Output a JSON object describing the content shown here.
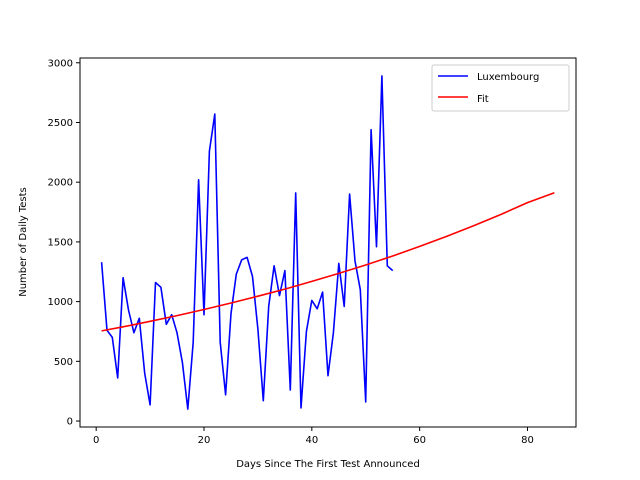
{
  "chart_data": {
    "type": "line",
    "title": "",
    "xlabel": "Days Since The First Test Announced",
    "ylabel": "Number of Daily Tests",
    "xlim": [
      -3,
      89
    ],
    "ylim": [
      -50,
      3040
    ],
    "xticks": [
      0,
      20,
      40,
      60,
      80
    ],
    "yticks": [
      0,
      500,
      1000,
      1500,
      2000,
      2500,
      3000
    ],
    "grid": false,
    "legend_position": "top-right",
    "series": [
      {
        "name": "Luxembourg",
        "color": "#0000ff",
        "x": [
          1,
          2,
          3,
          4,
          5,
          6,
          7,
          8,
          9,
          10,
          11,
          12,
          13,
          14,
          15,
          16,
          17,
          18,
          19,
          20,
          21,
          22,
          23,
          24,
          25,
          26,
          27,
          28,
          29,
          30,
          31,
          32,
          33,
          34,
          35,
          36,
          37,
          38,
          39,
          40,
          41,
          42,
          43,
          44,
          45,
          46,
          47,
          48,
          49,
          50,
          51,
          52,
          53,
          54,
          55
        ],
        "y": [
          1330,
          760,
          700,
          360,
          1200,
          930,
          740,
          860,
          400,
          135,
          1160,
          1120,
          810,
          890,
          740,
          490,
          100,
          660,
          2020,
          890,
          2260,
          2570,
          660,
          220,
          900,
          1230,
          1350,
          1370,
          1210,
          770,
          170,
          960,
          1300,
          1050,
          1260,
          260,
          1910,
          110,
          750,
          1010,
          940,
          1080,
          380,
          740,
          1320,
          960,
          1900,
          1340,
          1100,
          160,
          2440,
          1460,
          2890,
          1300,
          1260
        ]
      },
      {
        "name": "Fit",
        "color": "#ff0000",
        "type": "exponential",
        "x": [
          1,
          5,
          10,
          15,
          20,
          25,
          30,
          35,
          40,
          45,
          50,
          55,
          60,
          65,
          70,
          75,
          80,
          85
        ],
        "y": [
          755,
          789,
          835,
          883,
          934,
          988,
          1045,
          1105,
          1169,
          1236,
          1307,
          1382,
          1462,
          1546,
          1635,
          1729,
          1829,
          1911
        ]
      }
    ]
  }
}
